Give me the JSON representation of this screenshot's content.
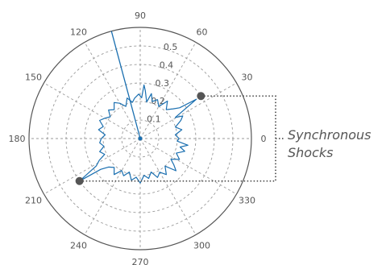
{
  "chart_data": {
    "type": "polar",
    "title": "",
    "angle_ticks": [
      "0",
      "30",
      "60",
      "90",
      "120",
      "150",
      "180",
      "210",
      "240",
      "270",
      "300",
      "330"
    ],
    "radius_ticks": [
      "0.1",
      "0.2",
      "0.3",
      "0.4",
      "0.5"
    ],
    "rlim": [
      0,
      0.6
    ],
    "grid": true,
    "series_color": "#1a6fb0",
    "marker_color": "#555555",
    "spike": {
      "angle": 105,
      "r": 0.6
    },
    "markers": [
      {
        "angle": 35,
        "r": 0.4
      },
      {
        "angle": 215,
        "r": 0.4
      }
    ],
    "trace": [
      [
        0,
        0.21
      ],
      [
        6,
        0.19
      ],
      [
        12,
        0.23
      ],
      [
        18,
        0.2
      ],
      [
        24,
        0.24
      ],
      [
        28,
        0.26
      ],
      [
        31,
        0.22
      ],
      [
        35,
        0.37
      ],
      [
        38,
        0.27
      ],
      [
        42,
        0.24
      ],
      [
        48,
        0.21
      ],
      [
        54,
        0.25
      ],
      [
        60,
        0.2
      ],
      [
        66,
        0.23
      ],
      [
        72,
        0.21
      ],
      [
        76,
        0.25
      ],
      [
        80,
        0.2
      ],
      [
        84,
        0.26
      ],
      [
        86,
        0.29
      ],
      [
        88,
        0.22
      ],
      [
        92,
        0.24
      ],
      [
        98,
        0.22
      ],
      [
        102,
        0.2
      ],
      [
        108,
        0.23
      ],
      [
        114,
        0.19
      ],
      [
        120,
        0.22
      ],
      [
        126,
        0.24
      ],
      [
        132,
        0.21
      ],
      [
        138,
        0.23
      ],
      [
        144,
        0.2
      ],
      [
        150,
        0.22
      ],
      [
        156,
        0.24
      ],
      [
        162,
        0.21
      ],
      [
        168,
        0.23
      ],
      [
        174,
        0.19
      ],
      [
        180,
        0.21
      ],
      [
        186,
        0.22
      ],
      [
        192,
        0.2
      ],
      [
        198,
        0.23
      ],
      [
        204,
        0.21
      ],
      [
        208,
        0.25
      ],
      [
        212,
        0.28
      ],
      [
        215,
        0.4
      ],
      [
        218,
        0.27
      ],
      [
        222,
        0.23
      ],
      [
        228,
        0.21
      ],
      [
        234,
        0.24
      ],
      [
        240,
        0.2
      ],
      [
        246,
        0.22
      ],
      [
        252,
        0.19
      ],
      [
        258,
        0.23
      ],
      [
        264,
        0.21
      ],
      [
        270,
        0.24
      ],
      [
        276,
        0.2
      ],
      [
        282,
        0.22
      ],
      [
        288,
        0.19
      ],
      [
        294,
        0.23
      ],
      [
        300,
        0.21
      ],
      [
        306,
        0.24
      ],
      [
        312,
        0.2
      ],
      [
        318,
        0.26
      ],
      [
        322,
        0.23
      ],
      [
        326,
        0.2
      ],
      [
        332,
        0.24
      ],
      [
        338,
        0.21
      ],
      [
        344,
        0.25
      ],
      [
        348,
        0.22
      ],
      [
        352,
        0.26
      ],
      [
        356,
        0.2
      ]
    ]
  },
  "annotation": {
    "line1": "Synchronous",
    "line2": "Shocks"
  }
}
